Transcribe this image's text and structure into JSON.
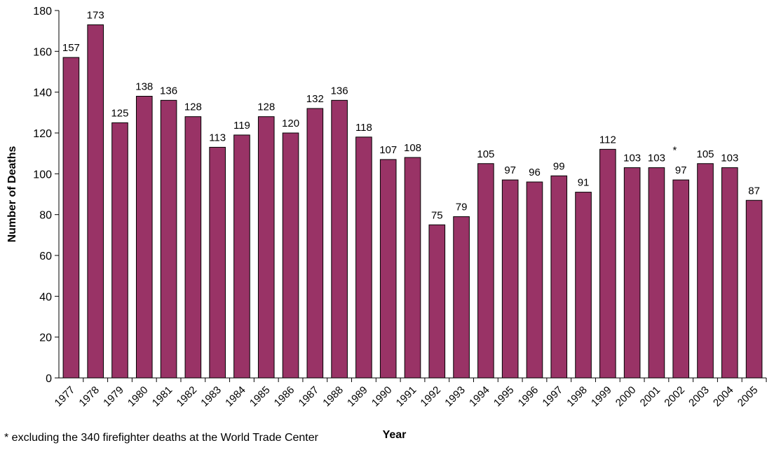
{
  "chart_data": {
    "type": "bar",
    "title": "",
    "xlabel": "Year",
    "ylabel": "Number of Deaths",
    "ylim": [
      0,
      180
    ],
    "yticks": [
      0,
      20,
      40,
      60,
      80,
      100,
      120,
      140,
      160,
      180
    ],
    "grid": false,
    "legend": "none",
    "bar_color": "#993366",
    "categories": [
      "1977",
      "1978",
      "1979",
      "1980",
      "1981",
      "1982",
      "1983",
      "1984",
      "1985",
      "1986",
      "1987",
      "1988",
      "1989",
      "1990",
      "1991",
      "1992",
      "1993",
      "1994",
      "1995",
      "1996",
      "1997",
      "1998",
      "1999",
      "2000",
      "2001",
      "2002",
      "2003",
      "2004",
      "2005"
    ],
    "values": [
      157,
      173,
      125,
      138,
      136,
      128,
      113,
      119,
      128,
      120,
      132,
      136,
      118,
      107,
      108,
      75,
      79,
      105,
      97,
      96,
      99,
      91,
      112,
      103,
      103,
      97,
      105,
      103,
      87
    ],
    "annotations": [
      {
        "category": "2001",
        "text": "*"
      }
    ]
  },
  "footnote": "*  excluding the 340 firefighter deaths at the World Trade Center"
}
